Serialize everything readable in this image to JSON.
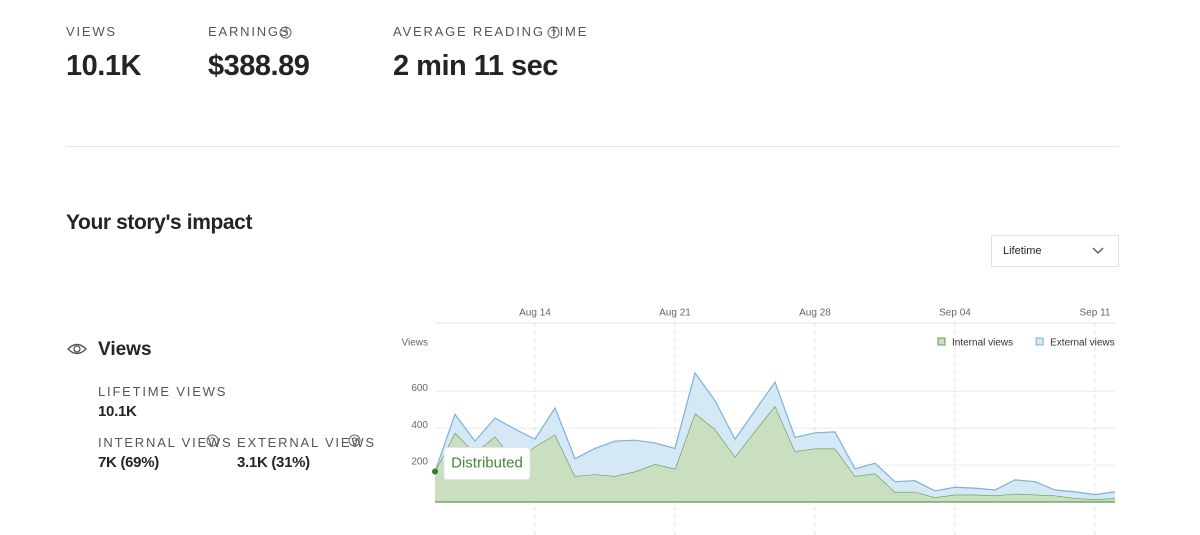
{
  "stats": [
    {
      "label": "VIEWS",
      "value": "10.1K"
    },
    {
      "label": "EARNINGS",
      "value": "$388.89"
    },
    {
      "label": "AVERAGE READING TIME",
      "value": "2 min 11 sec"
    }
  ],
  "section_title": "Your story's impact",
  "dropdown": "Lifetime",
  "views_panel": {
    "title": "Views",
    "lifetime": {
      "label": "LIFETIME VIEWS",
      "value": "10.1K"
    },
    "internal": {
      "label": "INTERNAL VIEWS",
      "value": "7K (69%)"
    },
    "external": {
      "label": "EXTERNAL VIEWS",
      "value": "3.1K (31%)"
    }
  },
  "chart_data": {
    "type": "stacked-area",
    "y_label": "Views",
    "annotation": "Distributed",
    "categories": [
      null,
      null,
      null,
      null,
      null,
      "Aug 14",
      null,
      null,
      null,
      null,
      null,
      null,
      "Aug 21",
      null,
      null,
      null,
      null,
      null,
      null,
      "Aug 28",
      null,
      null,
      null,
      null,
      null,
      null,
      "Sep 04",
      null,
      null,
      null,
      null,
      null,
      null,
      "Sep 11",
      null
    ],
    "series": [
      {
        "name": "Internal views",
        "color": "#c9dfc0",
        "line_color": "#5e9b50",
        "values": [
          165,
          375,
          265,
          355,
          220,
          300,
          365,
          140,
          150,
          140,
          165,
          205,
          180,
          480,
          395,
          245,
          385,
          520,
          275,
          290,
          290,
          140,
          155,
          55,
          55,
          25,
          40,
          40,
          35,
          45,
          40,
          35,
          20,
          15,
          20
        ]
      },
      {
        "name": "External views",
        "color": "#d5e8f6",
        "line_color": "#7db1d8",
        "values": [
          0,
          100,
          65,
          100,
          175,
          40,
          145,
          95,
          140,
          190,
          170,
          115,
          110,
          220,
          155,
          95,
          110,
          130,
          75,
          85,
          90,
          40,
          55,
          55,
          60,
          35,
          40,
          35,
          30,
          75,
          70,
          30,
          35,
          25,
          35
        ]
      }
    ],
    "ylim": [
      0,
      970
    ],
    "yticks": [
      200,
      400,
      600
    ],
    "grid": true
  }
}
